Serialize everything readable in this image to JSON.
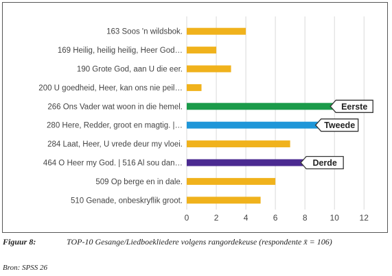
{
  "chart_data": {
    "type": "bar",
    "orientation": "horizontal",
    "categories": [
      "163 Soos 'n wildsbok.",
      "169 Heilig, heilig heilig, Heer God…",
      "190 Grote God, aan U die eer.",
      "200 U goedheid, Heer, kan ons nie peil…",
      "266 Ons Vader wat woon in die hemel.",
      "280 Here, Redder, groot en magtig. |…",
      "284 Laat, Heer, U vrede deur my vloei.",
      "464 O Heer my God. | 516 Al sou dan…",
      "509 Op berge en in dale.",
      "510 Genade, onbeskryflik groot."
    ],
    "values": [
      4,
      2,
      3,
      1,
      10,
      9,
      7,
      8,
      6,
      5
    ],
    "bar_colors": [
      "#f0b21c",
      "#f0b21c",
      "#f0b21c",
      "#f0b21c",
      "#1b9b4a",
      "#1f96d8",
      "#f0b21c",
      "#4b2a91",
      "#f0b21c",
      "#f0b21c"
    ],
    "annotations": [
      {
        "category_index": 4,
        "text": "Eerste"
      },
      {
        "category_index": 5,
        "text": "Tweede"
      },
      {
        "category_index": 7,
        "text": "Derde"
      }
    ],
    "xticks": [
      0,
      2,
      4,
      6,
      8,
      10,
      12
    ],
    "xlim": [
      0,
      12.5
    ],
    "grid": true,
    "title": "",
    "xlabel": "",
    "ylabel": ""
  },
  "caption": {
    "label": "Figuur 8:",
    "text": "TOP-10 Gesange/Liedboekliedere volgens rangordekeuse (respondente x̄ = 106)"
  },
  "source": "Bron: SPSS 26",
  "colors": {
    "gridline": "#d9d9d9",
    "text": "#444444",
    "annotation_border": "#333333"
  }
}
